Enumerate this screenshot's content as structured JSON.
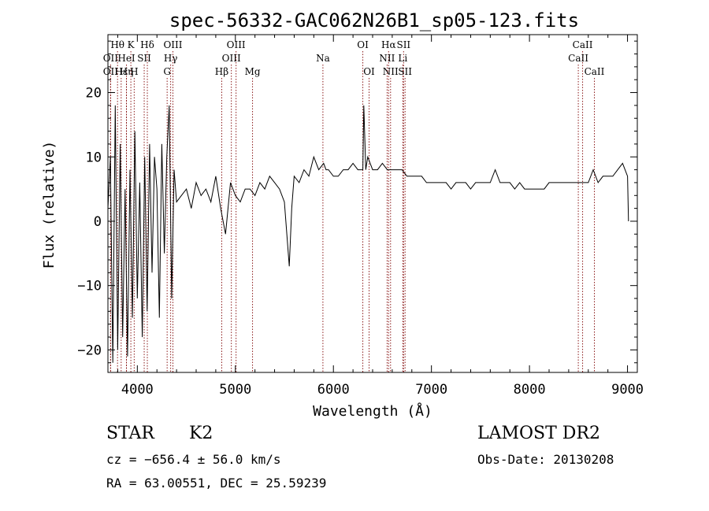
{
  "chart_data": {
    "type": "line",
    "title": "spec-56332-GAC062N26B1_sp05-123.fits",
    "xlabel": "Wavelength (Å)",
    "ylabel": "Flux (relative)",
    "xlim": [
      3700,
      9100
    ],
    "ylim": [
      -23.5,
      29
    ],
    "xticks": [
      4000,
      5000,
      6000,
      7000,
      8000,
      9000
    ],
    "yticks": [
      -20,
      -10,
      0,
      10,
      20
    ],
    "xtick_labels": [
      "4000",
      "5000",
      "6000",
      "7000",
      "8000",
      "9000"
    ],
    "ytick_labels": [
      "−20",
      "−10",
      "0",
      "10",
      "20"
    ],
    "line_color": "#000000",
    "marker_color": "#8b1a1a",
    "series": [
      {
        "x": [
          3700,
          3725,
          3750,
          3775,
          3800,
          3825,
          3850,
          3875,
          3900,
          3925,
          3950,
          3975,
          4000,
          4025,
          4050,
          4075,
          4100,
          4125,
          4150,
          4175,
          4200,
          4225,
          4250,
          4275,
          4300,
          4325,
          4350,
          4375,
          4400,
          4450,
          4500,
          4550,
          4600,
          4650,
          4700,
          4750,
          4800,
          4850,
          4900,
          4950,
          5000,
          5050,
          5100,
          5150,
          5200,
          5250,
          5300,
          5350,
          5400,
          5450,
          5500,
          5550,
          5575,
          5600,
          5650,
          5700,
          5750,
          5800,
          5850,
          5900,
          5925,
          5950,
          6000,
          6050,
          6100,
          6150,
          6200,
          6250,
          6300,
          6310,
          6330,
          6350,
          6400,
          6450,
          6500,
          6550,
          6600,
          6650,
          6700,
          6750,
          6800,
          6850,
          6900,
          6950,
          7000,
          7050,
          7100,
          7150,
          7200,
          7250,
          7300,
          7350,
          7400,
          7450,
          7500,
          7550,
          7600,
          7650,
          7700,
          7750,
          7800,
          7850,
          7900,
          7950,
          8000,
          8050,
          8100,
          8150,
          8200,
          8250,
          8300,
          8350,
          8400,
          8450,
          8500,
          8550,
          8600,
          8650,
          8700,
          8750,
          8800,
          8850,
          8900,
          8950,
          9000,
          9010
        ],
        "y": [
          2,
          10,
          -22,
          18,
          -20,
          12,
          -18,
          5,
          -21,
          8,
          -15,
          14,
          -12,
          6,
          -18,
          10,
          -14,
          12,
          -8,
          10,
          5,
          -15,
          12,
          -5,
          10,
          18,
          -12,
          8,
          3,
          4,
          5,
          2,
          6,
          4,
          5,
          3,
          7,
          2,
          -2,
          6,
          4,
          3,
          5,
          5,
          4,
          6,
          5,
          7,
          6,
          5,
          3,
          -7,
          2,
          7,
          6,
          8,
          7,
          10,
          8,
          9,
          8,
          8,
          7,
          7,
          8,
          8,
          9,
          8,
          8,
          18,
          8,
          10,
          8,
          8,
          9,
          8,
          8,
          8,
          8,
          7,
          7,
          7,
          7,
          6,
          6,
          6,
          6,
          6,
          5,
          6,
          6,
          6,
          5,
          6,
          6,
          6,
          6,
          8,
          6,
          6,
          6,
          5,
          6,
          5,
          5,
          5,
          5,
          5,
          6,
          6,
          6,
          6,
          6,
          6,
          6,
          6,
          6,
          8,
          6,
          7,
          7,
          7,
          8,
          9,
          7,
          0
        ]
      }
    ],
    "line_markers": [
      {
        "label": "Hθ",
        "x": 3798,
        "row": 1
      },
      {
        "label": "K",
        "x": 3934,
        "row": 1
      },
      {
        "label": "Hδ",
        "x": 4102,
        "row": 1
      },
      {
        "label": "OIII",
        "x": 4363,
        "row": 1
      },
      {
        "label": "OIII",
        "x": 5007,
        "row": 1
      },
      {
        "label": "OI",
        "x": 6300,
        "row": 1
      },
      {
        "label": "Hα",
        "x": 6563,
        "row": 1
      },
      {
        "label": "SII",
        "x": 6716,
        "row": 1
      },
      {
        "label": "CaII",
        "x": 8542,
        "row": 1
      },
      {
        "label": "OII",
        "x": 3727,
        "row": 2
      },
      {
        "label": "HeI",
        "x": 3889,
        "row": 2
      },
      {
        "label": "SII",
        "x": 4070,
        "row": 2
      },
      {
        "label": "Hγ",
        "x": 4340,
        "row": 2
      },
      {
        "label": "OIII",
        "x": 4959,
        "row": 2
      },
      {
        "label": "Na",
        "x": 5893,
        "row": 2
      },
      {
        "label": "NII",
        "x": 6548,
        "row": 2
      },
      {
        "label": "Li",
        "x": 6708,
        "row": 2
      },
      {
        "label": "CaII",
        "x": 8498,
        "row": 2
      },
      {
        "label": "OII",
        "x": 3727,
        "row": 3
      },
      {
        "label": "Hε",
        "x": 3835,
        "row": 3
      },
      {
        "label": "Hη",
        "x": 3889,
        "row": 3
      },
      {
        "label": "H",
        "x": 3968,
        "row": 3
      },
      {
        "label": "G",
        "x": 4304,
        "row": 3
      },
      {
        "label": "Hβ",
        "x": 4861,
        "row": 3
      },
      {
        "label": "Mg",
        "x": 5175,
        "row": 3
      },
      {
        "label": "OI",
        "x": 6364,
        "row": 3
      },
      {
        "label": "NII",
        "x": 6583,
        "row": 3
      },
      {
        "label": "SII",
        "x": 6731,
        "row": 3
      },
      {
        "label": "CaII",
        "x": 8662,
        "row": 3
      }
    ]
  },
  "info": {
    "object_class": "STAR",
    "subclass": "K2",
    "survey": "LAMOST DR2",
    "cz": "cz = −656.4 ± 56.0 km/s",
    "obs_date": "Obs-Date: 20130208",
    "coords": "RA =  63.00551, DEC =  25.59239"
  }
}
